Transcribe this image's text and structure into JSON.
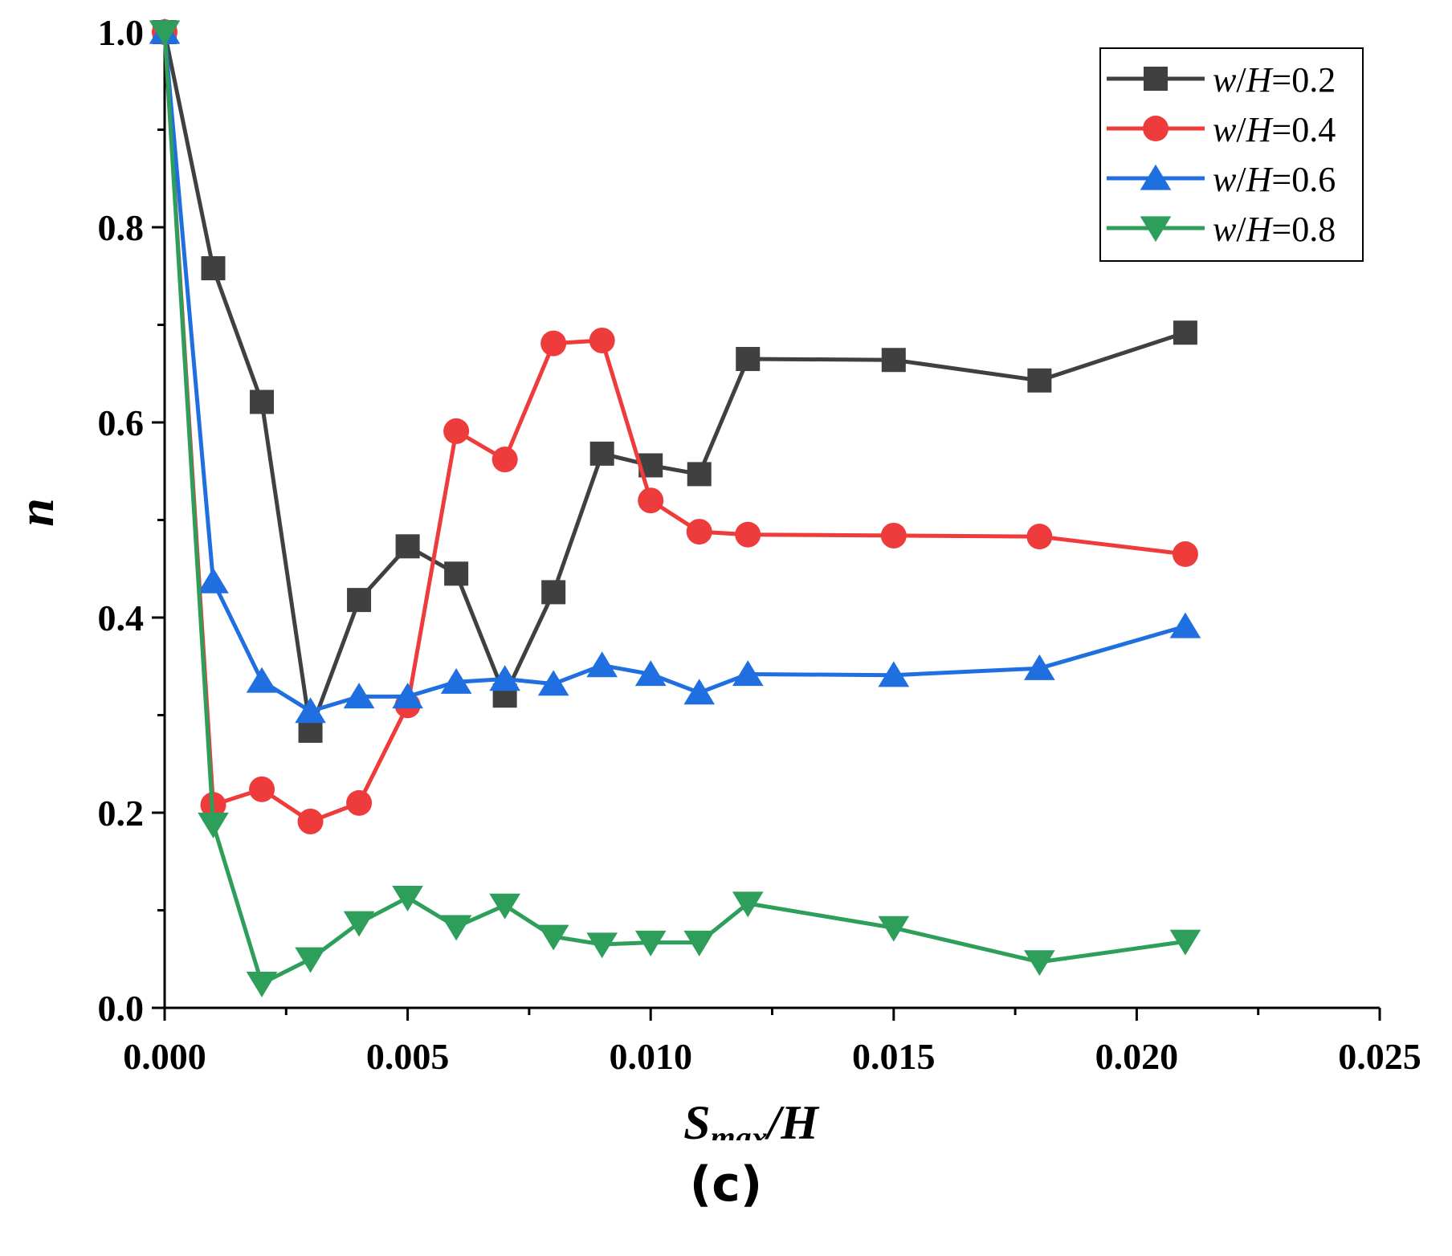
{
  "chart_data": {
    "type": "line",
    "x": [
      0.0,
      0.001,
      0.002,
      0.003,
      0.004,
      0.005,
      0.006,
      0.007,
      0.008,
      0.009,
      0.01,
      0.011,
      0.012,
      0.015,
      0.018,
      0.021
    ],
    "series": [
      {
        "name": "w/H=0.2",
        "name_parts": [
          "w",
          "/",
          "H",
          "=0.2"
        ],
        "color": "#404040",
        "marker": "square",
        "values": [
          1.0,
          0.758,
          0.621,
          0.284,
          0.418,
          0.473,
          0.445,
          0.32,
          0.426,
          0.568,
          0.556,
          0.547,
          0.665,
          0.664,
          0.643,
          0.692
        ]
      },
      {
        "name": "w/H=0.4",
        "name_parts": [
          "w",
          "/",
          "H",
          "=0.4"
        ],
        "color": "#ee3b3b",
        "marker": "circle",
        "values": [
          1.0,
          0.208,
          0.224,
          0.191,
          0.21,
          0.31,
          0.591,
          0.562,
          0.681,
          0.684,
          0.52,
          0.488,
          0.485,
          0.484,
          0.483,
          0.465
        ]
      },
      {
        "name": "w/H=0.6",
        "name_parts": [
          "w",
          "/",
          "H",
          "=0.6"
        ],
        "color": "#1f6fe0",
        "marker": "triangle-up",
        "values": [
          1.0,
          0.437,
          0.335,
          0.304,
          0.319,
          0.319,
          0.334,
          0.337,
          0.332,
          0.351,
          0.342,
          0.323,
          0.342,
          0.341,
          0.348,
          0.391
        ]
      },
      {
        "name": "w/H=0.8",
        "name_parts": [
          "w",
          "/",
          "H",
          "=0.8"
        ],
        "color": "#2e9e5b",
        "marker": "triangle-down",
        "values": [
          1.0,
          0.188,
          0.025,
          0.05,
          0.087,
          0.113,
          0.083,
          0.105,
          0.073,
          0.065,
          0.067,
          0.067,
          0.107,
          0.082,
          0.047,
          0.068
        ]
      }
    ],
    "xlim": [
      0,
      0.025
    ],
    "ylim": [
      0,
      1.0
    ],
    "xticks": [
      "0.000",
      "0.005",
      "0.010",
      "0.015",
      "0.020",
      "0.025"
    ],
    "yticks": [
      "0.0",
      "0.2",
      "0.4",
      "0.6",
      "0.8",
      "1.0"
    ],
    "xlabel_main": "S",
    "xlabel_sub": "max",
    "xlabel_rest": "/H",
    "ylabel": "n",
    "legend_position": "top-right",
    "grid": false
  },
  "panel_label": "(c)"
}
